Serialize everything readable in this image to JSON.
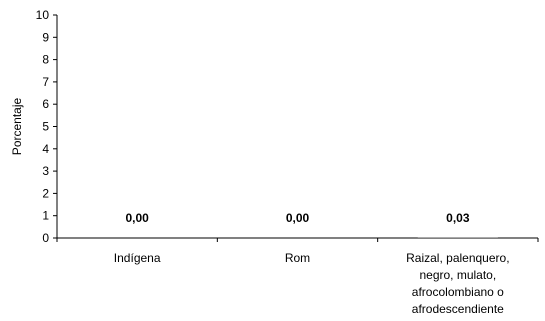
{
  "chart_data": {
    "type": "bar",
    "categories": [
      [
        "Indígena"
      ],
      [
        "Rom"
      ],
      [
        "Raizal, palenquero,",
        "negro, mulato,",
        "afrocolombiano o",
        "afrodescendiente"
      ]
    ],
    "values": [
      0.0,
      0.0,
      0.03
    ],
    "data_labels": [
      "0,00",
      "0,00",
      "0,03"
    ],
    "ylabel": "Porcentaje",
    "ylim": [
      0,
      10
    ],
    "yticks": [
      0,
      1,
      2,
      3,
      4,
      5,
      6,
      7,
      8,
      9,
      10
    ],
    "grid": false,
    "legend": "none",
    "bar_color": "#808080"
  }
}
